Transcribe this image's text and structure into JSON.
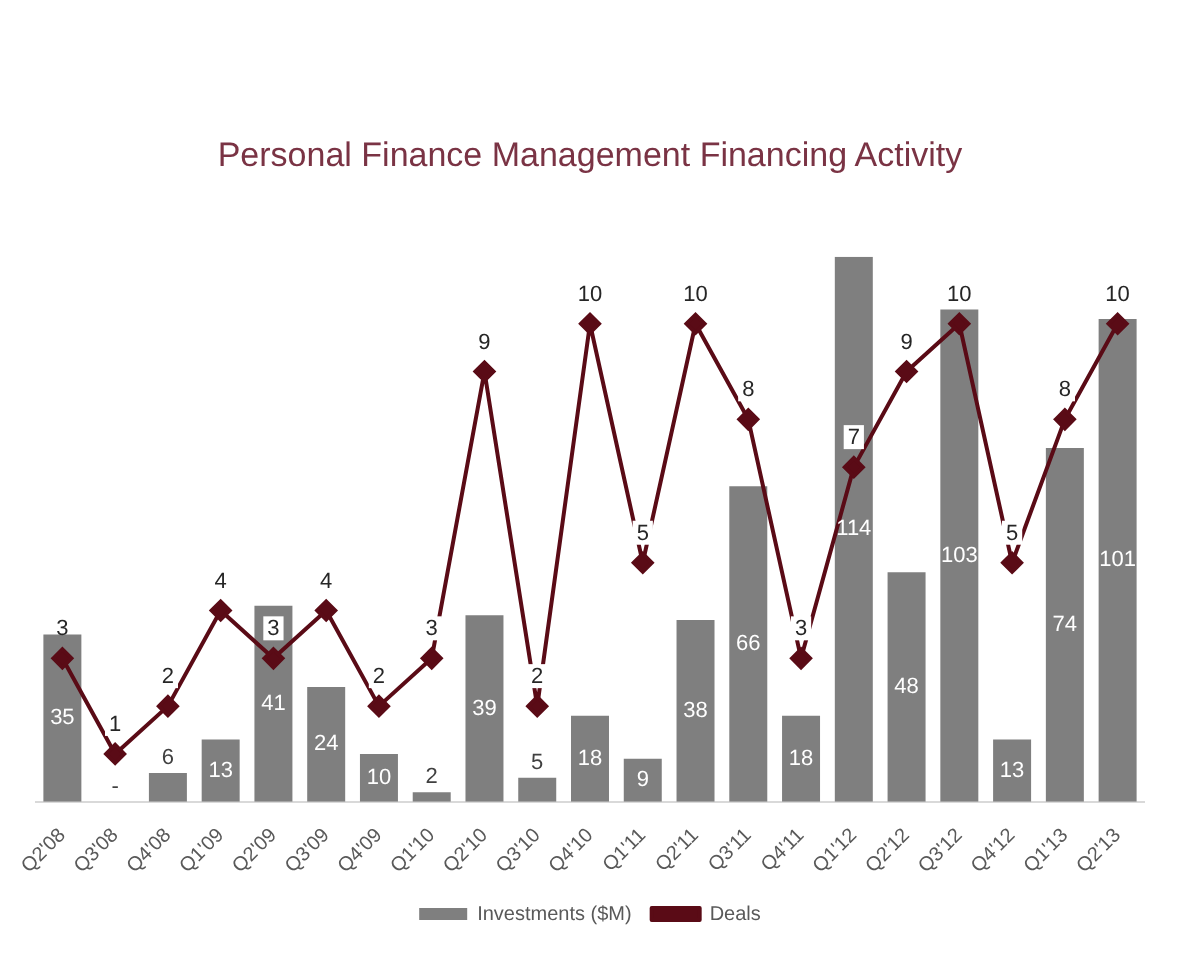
{
  "chart_data": {
    "type": "bar",
    "title": "Personal Finance Management Financing Activity",
    "categories": [
      "Q2'08",
      "Q3'08",
      "Q4'08",
      "Q1'09",
      "Q2'09",
      "Q3'09",
      "Q4'09",
      "Q1'10",
      "Q2'10",
      "Q3'10",
      "Q4'10",
      "Q1'11",
      "Q2'11",
      "Q3'11",
      "Q4'11",
      "Q1'12",
      "Q2'12",
      "Q3'12",
      "Q4'12",
      "Q1'13",
      "Q2'13"
    ],
    "series": [
      {
        "name": "Investments ($M)",
        "color": "#7f7f7f",
        "values": [
          35,
          null,
          6,
          13,
          41,
          24,
          10,
          2,
          39,
          5,
          18,
          9,
          38,
          66,
          18,
          114,
          48,
          103,
          13,
          74,
          101
        ],
        "value_labels": [
          "35",
          "-",
          "6",
          "13",
          "41",
          "24",
          "10",
          "2",
          "39",
          "5",
          "18",
          "9",
          "38",
          "66",
          "18",
          "114",
          "48",
          "103",
          "13",
          "74",
          "101"
        ]
      },
      {
        "name": "Deals",
        "type": "line",
        "axis": "y2",
        "color": "#5a0b16",
        "marker": "diamond",
        "values": [
          3,
          1,
          2,
          4,
          3,
          4,
          2,
          3,
          9,
          2,
          10,
          5,
          10,
          8,
          3,
          7,
          9,
          10,
          5,
          8,
          10
        ],
        "value_labels": [
          "3",
          "1",
          "2",
          "4",
          "3",
          "4",
          "2",
          "3",
          "9",
          "2",
          "10",
          "5",
          "10",
          "8",
          "3",
          "7",
          "9",
          "10",
          "5",
          "8",
          "10"
        ]
      }
    ],
    "ylim": [
      0,
      114
    ],
    "y2lim": [
      0,
      11.4
    ],
    "tick_labels": "x",
    "grid": false,
    "legend": "bottom"
  }
}
